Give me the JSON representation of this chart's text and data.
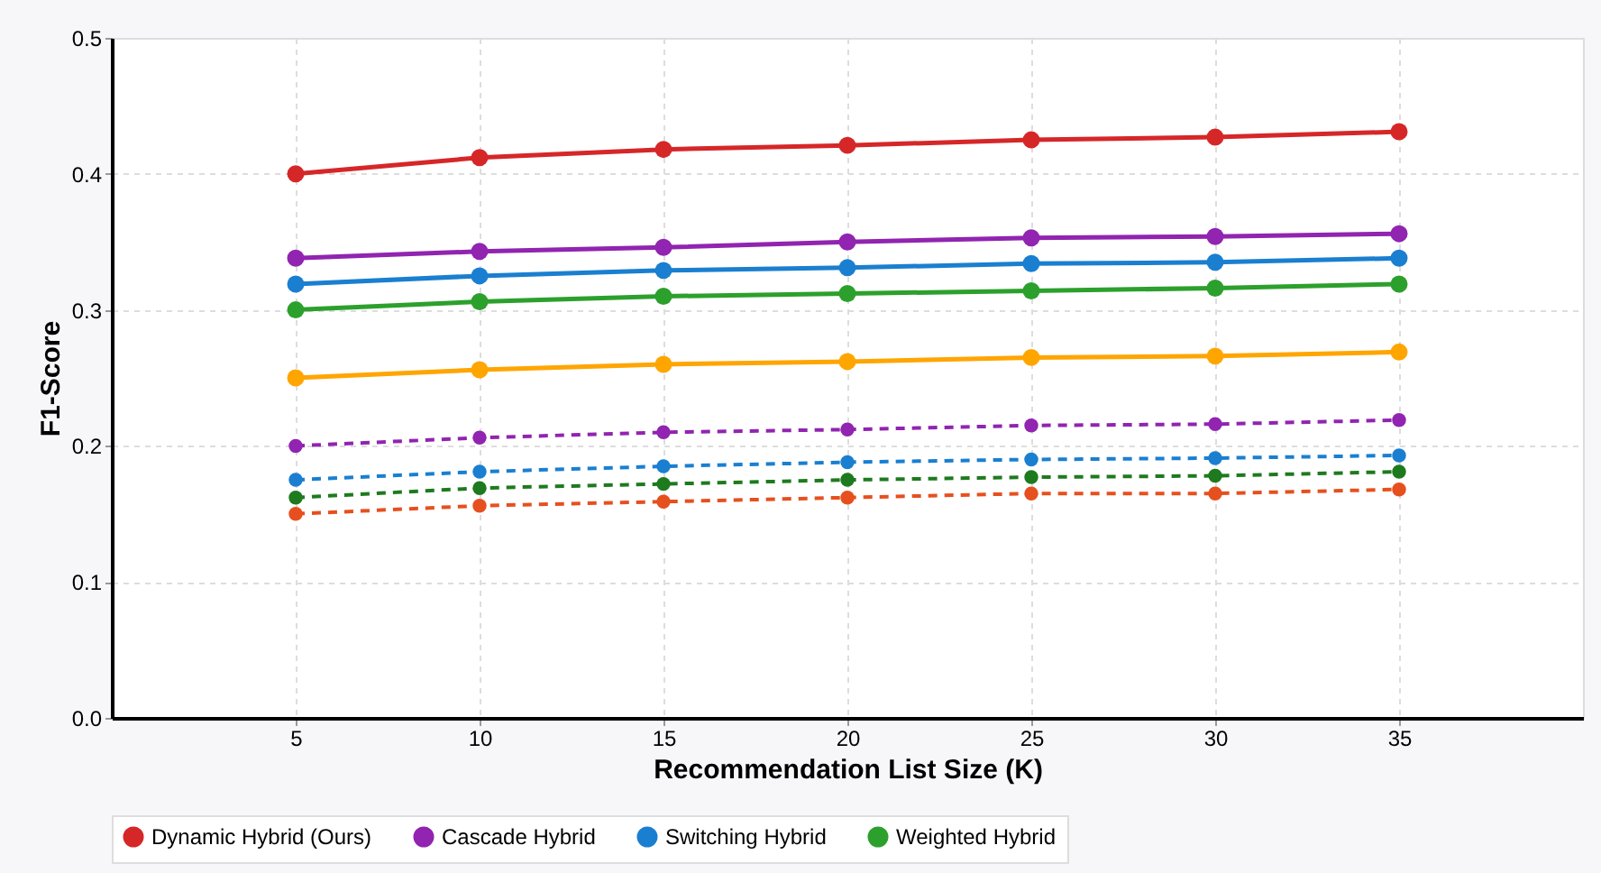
{
  "chart_data": {
    "type": "line",
    "xlabel": "Recommendation List Size (K)",
    "ylabel": "F1-Score",
    "x": [
      5,
      10,
      15,
      20,
      25,
      30,
      35
    ],
    "xlim": [
      0,
      40
    ],
    "xticks": [
      5,
      10,
      15,
      20,
      25,
      30,
      35
    ],
    "ylim": [
      0,
      0.5
    ],
    "yticks": [
      {
        "value": 0,
        "label": "0.0"
      },
      0.1,
      0.2,
      0.3,
      0.4,
      0.5
    ],
    "grid": true,
    "legend": "bottom",
    "marker": "circle",
    "series": [
      {
        "name": "Dynamic Hybrid (Ours)",
        "color": "#d62728",
        "line_style": "solid",
        "values": [
          0.4,
          0.412,
          0.418,
          0.421,
          0.425,
          0.427,
          0.431
        ]
      },
      {
        "name": "Cascade Hybrid",
        "color": "#9124b0",
        "line_style": "solid",
        "values": [
          0.338,
          0.343,
          0.346,
          0.35,
          0.353,
          0.354,
          0.356
        ]
      },
      {
        "name": "Switching Hybrid",
        "color": "#1a7fd0",
        "line_style": "solid",
        "values": [
          0.319,
          0.325,
          0.329,
          0.331,
          0.334,
          0.335,
          0.338
        ]
      },
      {
        "name": "Weighted Hybrid",
        "color": "#2ca02c",
        "line_style": "solid",
        "values": [
          0.3,
          0.306,
          0.31,
          0.312,
          0.314,
          0.316,
          0.319
        ]
      },
      {
        "color": "#ffa500",
        "line_style": "solid",
        "values": [
          0.25,
          0.256,
          0.26,
          0.262,
          0.265,
          0.266,
          0.269
        ]
      },
      {
        "color": "#9124b0",
        "line_style": "dashed",
        "values": [
          0.2,
          0.206,
          0.21,
          0.212,
          0.215,
          0.216,
          0.219
        ]
      },
      {
        "color": "#1a7fd0",
        "line_style": "dashed",
        "values": [
          0.175,
          0.181,
          0.185,
          0.188,
          0.19,
          0.191,
          0.193
        ]
      },
      {
        "color": "#1e7a1e",
        "line_style": "dashed",
        "values": [
          0.162,
          0.169,
          0.172,
          0.175,
          0.177,
          0.178,
          0.181
        ]
      },
      {
        "color": "#e6501e",
        "line_style": "dashed",
        "values": [
          0.15,
          0.156,
          0.159,
          0.162,
          0.165,
          0.165,
          0.168
        ]
      }
    ]
  }
}
